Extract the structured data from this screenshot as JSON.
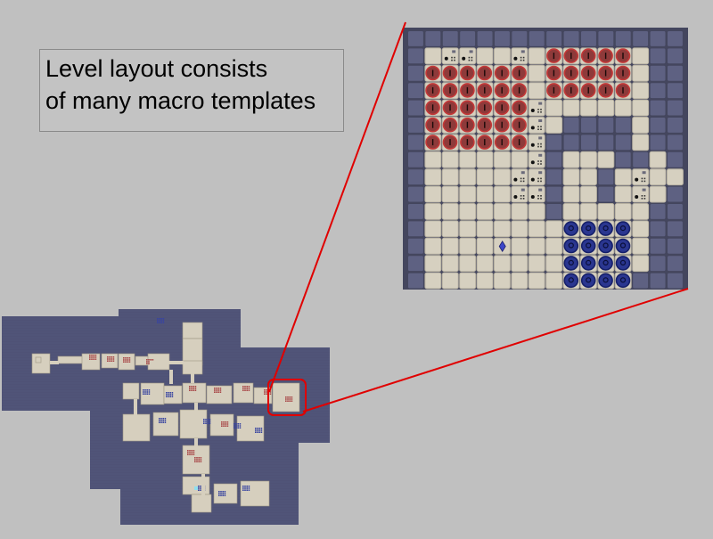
{
  "callout": {
    "line1": "Level layout consists",
    "line2": "of many macro templates"
  },
  "zoom_view": {
    "colors": {
      "wall": "#5e6182",
      "wall_edge": "#44465e",
      "floor": "#d6d0c0",
      "floor_edge": "#b8b2a2",
      "red_piece": "#8e3a3a",
      "red_ring": "#c43838",
      "blue_piece": "#2a3690",
      "blue_ring": "#16206a",
      "gem": "#3b46c8"
    },
    "icons": [
      "red-token-icon",
      "blue-token-icon",
      "gem-icon",
      "dice-icon"
    ]
  },
  "overview_map": {
    "colors": {
      "background": "#4f5276",
      "room": "#d6cfbe",
      "highlight": "#e00000"
    }
  },
  "connector_color": "#e00000"
}
